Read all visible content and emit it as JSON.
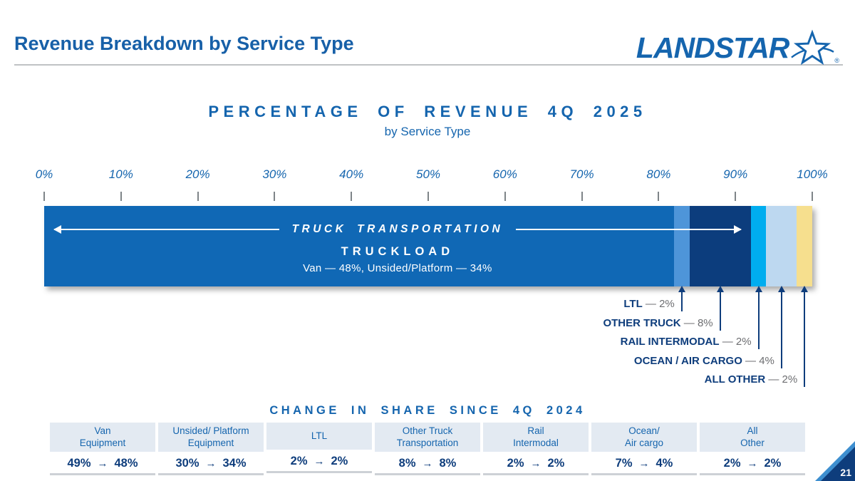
{
  "header": {
    "title": "Revenue Breakdown by Service Type",
    "logo_text": "LANDSTAR",
    "registered_mark": "®"
  },
  "chart": {
    "title": "PERCENTAGE OF REVENUE 4Q 2025",
    "subtitle": "by Service Type",
    "overlay": {
      "group_label": "TRUCK TRANSPORTATION",
      "truckload_label": "TRUCKLOAD",
      "truckload_detail": "Van — 48%, Unsided/Platform — 34%"
    }
  },
  "chart_data": {
    "type": "bar",
    "stacked": true,
    "orientation": "horizontal",
    "title": "PERCENTAGE OF REVENUE 4Q 2025",
    "subtitle": "by Service Type",
    "unit": "%",
    "xlim": [
      0,
      100
    ],
    "x_ticks": [
      "0%",
      "10%",
      "20%",
      "30%",
      "40%",
      "50%",
      "60%",
      "70%",
      "80%",
      "90%",
      "100%"
    ],
    "segments": [
      {
        "name": "Truckload",
        "value": 82,
        "color": "#1068B5",
        "detail": "Van — 48%, Unsided/Platform — 34%"
      },
      {
        "name": "LTL",
        "value": 2,
        "color": "#4E95D9"
      },
      {
        "name": "Other Truck",
        "value": 8,
        "color": "#0C3D7D"
      },
      {
        "name": "Rail Intermodal",
        "value": 2,
        "color": "#00ADEF"
      },
      {
        "name": "Ocean / Air Cargo",
        "value": 4,
        "color": "#BDD8F0"
      },
      {
        "name": "All Other",
        "value": 2,
        "color": "#F6DF8E"
      }
    ],
    "truckload_breakdown": {
      "Van": 48,
      "Unsided/Platform": 34
    },
    "truck_transportation_span_pct": 92
  },
  "callouts": [
    {
      "label": "LTL",
      "value": "— 2%"
    },
    {
      "label": "OTHER TRUCK",
      "value": "— 8%"
    },
    {
      "label": "RAIL INTERMODAL",
      "value": "— 2%"
    },
    {
      "label": "OCEAN / AIR CARGO",
      "value": "— 4%"
    },
    {
      "label": "ALL OTHER",
      "value": "— 2%"
    }
  ],
  "change_table": {
    "title": "CHANGE IN SHARE SINCE 4Q 2024",
    "arrow": "→",
    "columns": [
      {
        "label_line1": "Van",
        "label_line2": "Equipment",
        "from": "49%",
        "to": "48%"
      },
      {
        "label_line1": "Unsided/ Platform",
        "label_line2": "Equipment",
        "from": "30%",
        "to": "34%"
      },
      {
        "label_line1": "LTL",
        "label_line2": "",
        "from": "2%",
        "to": "2%"
      },
      {
        "label_line1": "Other Truck",
        "label_line2": "Transportation",
        "from": "8%",
        "to": "8%"
      },
      {
        "label_line1": "Rail",
        "label_line2": "Intermodal",
        "from": "2%",
        "to": "2%"
      },
      {
        "label_line1": "Ocean/",
        "label_line2": "Air cargo",
        "from": "7%",
        "to": "4%"
      },
      {
        "label_line1": "All",
        "label_line2": "Other",
        "from": "2%",
        "to": "2%"
      }
    ]
  },
  "footer": {
    "page_number": "21"
  }
}
